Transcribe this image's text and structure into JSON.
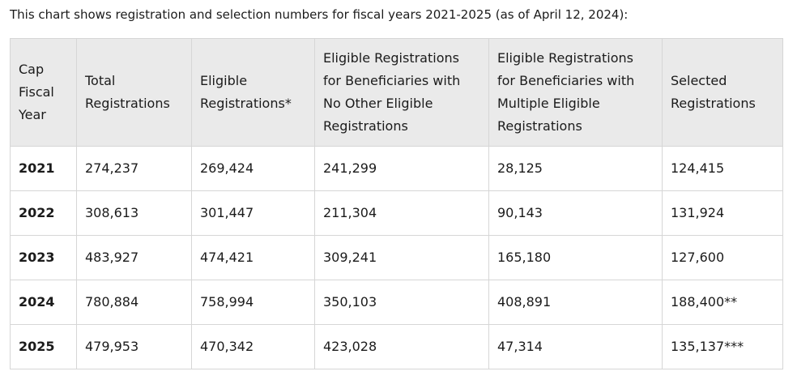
{
  "intro_text": "This chart shows registration and selection numbers for fiscal years 2021-2025 (as of April 12, 2024):",
  "table": {
    "headers": [
      "Cap Fiscal Year",
      "Total Registrations",
      "Eligible Registrations*",
      "Eligible Registrations for Beneficiaries with No Other Eligible Registrations",
      "Eligible Registrations for Beneficiaries with Multiple Eligible Registrations",
      "Selected Registrations"
    ],
    "rows": [
      [
        "2021",
        "274,237",
        "269,424",
        "241,299",
        "28,125",
        "124,415"
      ],
      [
        "2022",
        "308,613",
        "301,447",
        "211,304",
        "90,143",
        "131,924"
      ],
      [
        "2023",
        "483,927",
        "474,421",
        "309,241",
        "165,180",
        "127,600"
      ],
      [
        "2024",
        "780,884",
        "758,994",
        "350,103",
        "408,891",
        "188,400**"
      ],
      [
        "2025",
        "479,953",
        "470,342",
        "423,028",
        "47,314",
        "135,137***"
      ]
    ]
  }
}
